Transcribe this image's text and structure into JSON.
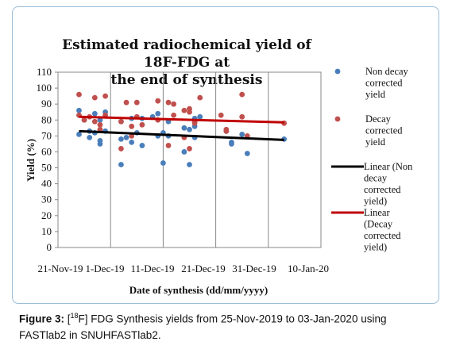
{
  "chart_data": {
    "type": "scatter",
    "title_line1": "Estimated radiochemical yield of 18F-FDG at",
    "title_line2": "the end of synthesis",
    "xlabel": "Date of synthesis (dd/mm/yyyy)",
    "ylabel": "Yield (%)",
    "ylim": [
      0,
      110
    ],
    "yticks": [
      "0",
      "10",
      "20",
      "30",
      "40",
      "50",
      "60",
      "70",
      "80",
      "90",
      "100",
      "110"
    ],
    "xlim": [
      "2019-11-21",
      "2020-01-10"
    ],
    "xtick_labels": [
      "21-Nov-19",
      "1-Dec-19",
      "11-Dec-19",
      "21-Dec-19",
      "31-Dec-19",
      "10-Jan-20"
    ],
    "grid": "vertical",
    "legend_position": "right",
    "series": [
      {
        "name": "Non decay corrected yield",
        "color": "#4a7ebb",
        "points": [
          [
            "2019-11-25",
            86
          ],
          [
            "2019-11-25",
            71
          ],
          [
            "2019-11-26",
            80
          ],
          [
            "2019-11-27",
            73
          ],
          [
            "2019-11-27",
            69
          ],
          [
            "2019-11-28",
            84
          ],
          [
            "2019-11-28",
            72
          ],
          [
            "2019-11-29",
            80
          ],
          [
            "2019-11-29",
            67
          ],
          [
            "2019-11-29",
            65
          ],
          [
            "2019-11-30",
            85
          ],
          [
            "2019-11-30",
            73
          ],
          [
            "2019-12-03",
            79
          ],
          [
            "2019-12-03",
            68
          ],
          [
            "2019-12-03",
            52
          ],
          [
            "2019-12-04",
            69
          ],
          [
            "2019-12-05",
            81
          ],
          [
            "2019-12-05",
            66
          ],
          [
            "2019-12-06",
            72
          ],
          [
            "2019-12-07",
            81
          ],
          [
            "2019-12-07",
            64
          ],
          [
            "2019-12-09",
            82
          ],
          [
            "2019-12-10",
            84
          ],
          [
            "2019-12-10",
            70
          ],
          [
            "2019-12-11",
            72
          ],
          [
            "2019-12-11",
            53
          ],
          [
            "2019-12-12",
            79
          ],
          [
            "2019-12-12",
            70
          ],
          [
            "2019-12-15",
            75
          ],
          [
            "2019-12-15",
            60
          ],
          [
            "2019-12-16",
            74
          ],
          [
            "2019-12-16",
            52
          ],
          [
            "2019-12-17",
            81
          ],
          [
            "2019-12-17",
            76
          ],
          [
            "2019-12-17",
            69
          ],
          [
            "2019-12-18",
            82
          ],
          [
            "2019-12-23",
            73
          ],
          [
            "2019-12-24",
            66
          ],
          [
            "2019-12-24",
            65
          ],
          [
            "2019-12-26",
            71
          ],
          [
            "2019-12-27",
            59
          ],
          [
            "2020-01-03",
            68
          ]
        ]
      },
      {
        "name": "Decay corrected yield",
        "color": "#c0504d",
        "points": [
          [
            "2019-11-25",
            96
          ],
          [
            "2019-11-25",
            83
          ],
          [
            "2019-11-26",
            80
          ],
          [
            "2019-11-27",
            82
          ],
          [
            "2019-11-28",
            94
          ],
          [
            "2019-11-28",
            79
          ],
          [
            "2019-11-29",
            77
          ],
          [
            "2019-11-29",
            74
          ],
          [
            "2019-11-30",
            95
          ],
          [
            "2019-11-30",
            83
          ],
          [
            "2019-12-03",
            79
          ],
          [
            "2019-12-03",
            62
          ],
          [
            "2019-12-04",
            91
          ],
          [
            "2019-12-05",
            76
          ],
          [
            "2019-12-05",
            70
          ],
          [
            "2019-12-06",
            91
          ],
          [
            "2019-12-06",
            82
          ],
          [
            "2019-12-07",
            77
          ],
          [
            "2019-12-10",
            92
          ],
          [
            "2019-12-10",
            80
          ],
          [
            "2019-12-12",
            91
          ],
          [
            "2019-12-12",
            64
          ],
          [
            "2019-12-13",
            90
          ],
          [
            "2019-12-13",
            83
          ],
          [
            "2019-12-15",
            86
          ],
          [
            "2019-12-15",
            69
          ],
          [
            "2019-12-16",
            87
          ],
          [
            "2019-12-16",
            85
          ],
          [
            "2019-12-16",
            62
          ],
          [
            "2019-12-17",
            79
          ],
          [
            "2019-12-17",
            78
          ],
          [
            "2019-12-18",
            94
          ],
          [
            "2019-12-22",
            83
          ],
          [
            "2019-12-23",
            74
          ],
          [
            "2019-12-23",
            73
          ],
          [
            "2019-12-26",
            96
          ],
          [
            "2019-12-26",
            82
          ],
          [
            "2019-12-27",
            70
          ],
          [
            "2020-01-03",
            78
          ]
        ]
      },
      {
        "name": "Linear (Non decay corrected yield)",
        "color": "#000000",
        "line": [
          [
            "2019-11-25",
            73
          ],
          [
            "2020-01-03",
            67.5
          ]
        ]
      },
      {
        "name": "Linear (Decay corrected yield)",
        "color": "#c00000",
        "line": [
          [
            "2019-11-25",
            82
          ],
          [
            "2020-01-03",
            78.5
          ]
        ]
      }
    ],
    "legend": [
      {
        "label_lines": [
          "Non decay",
          "corrected",
          "yield"
        ]
      },
      {
        "label_lines": [
          "Decay",
          "corrected",
          "yield"
        ]
      },
      {
        "label_lines": [
          "Linear (Non",
          "decay",
          "corrected",
          "yield)"
        ]
      },
      {
        "label_lines": [
          "Linear",
          "(Decay",
          "corrected",
          "yield)"
        ]
      }
    ]
  },
  "caption": {
    "label": "Figure 3:",
    "text_line1_a": " [",
    "superscript": "18",
    "text_line1_b": "F] FDG Synthesis yields from 25-Nov-2019 to 03-Jan-2020 using",
    "text_line2": "FASTlab2 in SNUHFASTlab2."
  }
}
